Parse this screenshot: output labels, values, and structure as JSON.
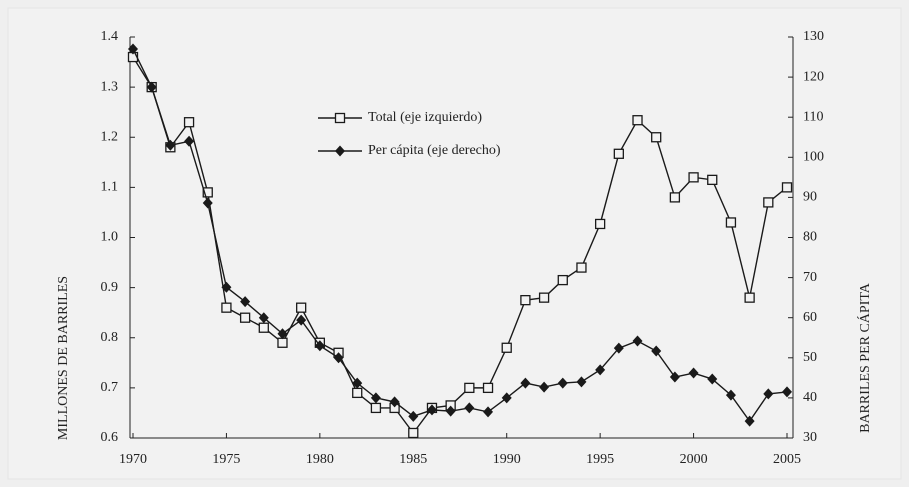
{
  "chart_data": {
    "type": "line",
    "x": [
      1970,
      1971,
      1972,
      1973,
      1974,
      1975,
      1976,
      1977,
      1978,
      1979,
      1980,
      1981,
      1982,
      1983,
      1984,
      1985,
      1986,
      1987,
      1988,
      1989,
      1990,
      1991,
      1992,
      1993,
      1994,
      1995,
      1996,
      1997,
      1998,
      1999,
      2000,
      2001,
      2002,
      2003,
      2004,
      2005
    ],
    "series": [
      {
        "name": "Total (eje izquierdo)",
        "color": "#1a1a1a",
        "marker": "square",
        "values": [
          1.36,
          1.3,
          1.18,
          1.23,
          1.09,
          0.86,
          0.84,
          0.82,
          0.79,
          0.86,
          0.79,
          0.77,
          0.69,
          0.66,
          0.66,
          0.61,
          0.66,
          0.665,
          0.7,
          0.7,
          0.78,
          0.875,
          0.88,
          0.915,
          0.94,
          1.027,
          1.167,
          1.234,
          1.2,
          1.08,
          1.12,
          1.115,
          1.03,
          0.88,
          1.07,
          1.1
        ]
      },
      {
        "name": "Per cápita (eje derecho)",
        "color": "#1a1a1a",
        "marker": "diamond",
        "axis": "y2",
        "values": [
          127,
          117.5,
          103,
          104,
          88.6,
          67.6,
          64,
          60,
          56,
          59.4,
          53,
          50,
          43.7,
          40,
          39,
          35.4,
          37,
          36.7,
          37.5,
          36.5,
          40,
          43.7,
          42.7,
          43.7,
          44,
          47,
          52.4,
          54.2,
          51.7,
          45.2,
          46.2,
          44.7,
          40.7,
          34.2,
          41,
          41.5
        ]
      }
    ],
    "ylabel": "MILLONES DE BARRILES",
    "y2label": "BARRILES PER CÁPITA",
    "xlim": [
      1970,
      2005
    ],
    "xticks": [
      1970,
      1975,
      1980,
      1985,
      1990,
      1995,
      2000,
      2005
    ],
    "ylim": [
      0.6,
      1.4
    ],
    "yticks": [
      0.6,
      0.7,
      0.8,
      0.9,
      {
        "value": 1,
        "label": "1.0"
      },
      1.1,
      1.2,
      1.3,
      1.4
    ],
    "y2lim": [
      30,
      130
    ],
    "y2ticks": [
      30,
      40,
      50,
      60,
      70,
      80,
      90,
      100,
      110,
      120,
      130
    ],
    "grid": false
  }
}
